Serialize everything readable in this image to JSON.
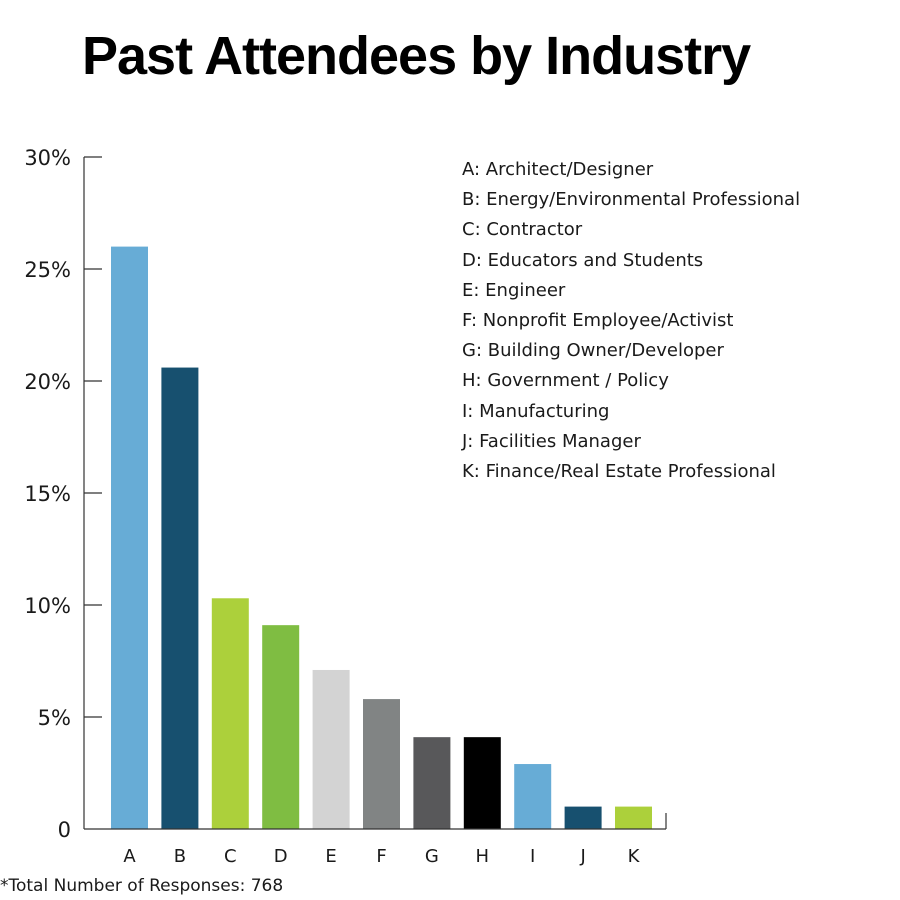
{
  "title": "Past Attendees by Industry",
  "footnote": "*Total Number of Responses: 768",
  "legend": [
    "A: Architect/Designer",
    "B: Energy/Environmental Professional",
    "C: Contractor",
    "D: Educators and Students",
    "E: Engineer",
    "F: Nonprofit Employee/Activist",
    "G: Building Owner/Developer",
    "H: Government / Policy",
    "I: Manufacturing",
    "J: Facilities Manager",
    "K: Finance/Real Estate Professional"
  ],
  "chart_data": {
    "type": "bar",
    "title": "Past Attendees by Industry",
    "xlabel": "",
    "ylabel": "",
    "categories": [
      "A",
      "B",
      "C",
      "D",
      "E",
      "F",
      "G",
      "H",
      "I",
      "J",
      "K"
    ],
    "values": [
      26.0,
      20.6,
      10.3,
      9.1,
      7.1,
      5.8,
      4.1,
      4.1,
      2.9,
      1.0,
      1.0
    ],
    "colors": [
      "#67acd6",
      "#17506f",
      "#acd03b",
      "#7fbd42",
      "#d3d3d3",
      "#818484",
      "#58585a",
      "#000000",
      "#67acd6",
      "#17506f",
      "#acd03b"
    ],
    "ylim": [
      0,
      30
    ],
    "yticks": [
      {
        "value": 0,
        "label": "0"
      },
      {
        "value": 5,
        "label": "5%"
      },
      {
        "value": 10,
        "label": "10%"
      },
      {
        "value": 15,
        "label": "15%"
      },
      {
        "value": 20,
        "label": "20%"
      },
      {
        "value": 25,
        "label": "25%"
      },
      {
        "value": 30,
        "label": "30%"
      }
    ],
    "grid": false,
    "legend_position": "top-right"
  }
}
